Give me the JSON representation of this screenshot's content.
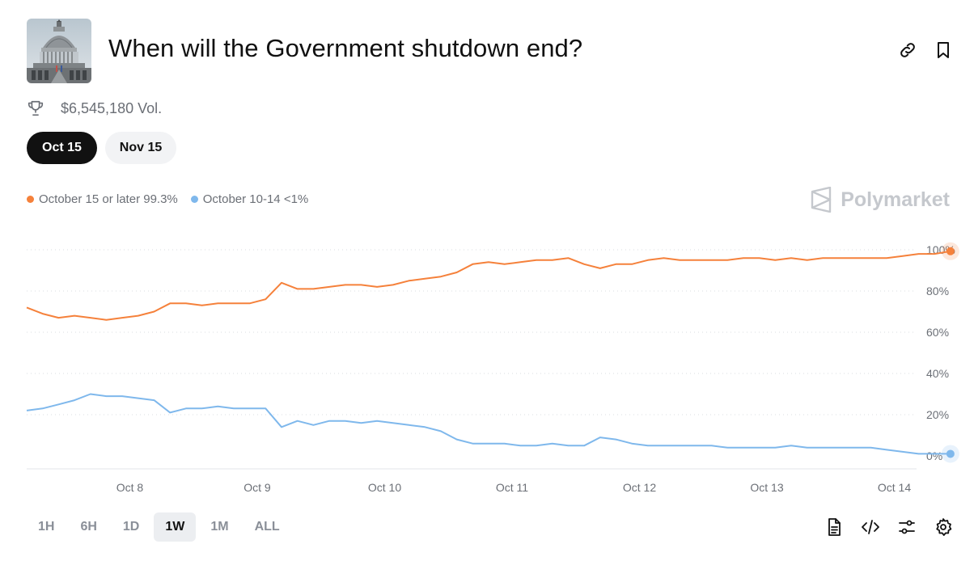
{
  "market": {
    "title": "When will the Government shutdown end?",
    "volume": "$6,545,180 Vol.",
    "thumbnail": "capitol-building-image"
  },
  "date_tabs": [
    {
      "label": "Oct 15",
      "active": true
    },
    {
      "label": "Nov 15",
      "active": false
    }
  ],
  "legend": [
    {
      "label": "October 15 or later 99.3%",
      "color": "#f5813b"
    },
    {
      "label": "October 10-14 <1%",
      "color": "#7fb8ec"
    }
  ],
  "brand": "Polymarket",
  "time_ranges": [
    {
      "label": "1H",
      "active": false
    },
    {
      "label": "6H",
      "active": false
    },
    {
      "label": "1D",
      "active": false
    },
    {
      "label": "1W",
      "active": true
    },
    {
      "label": "1M",
      "active": false
    },
    {
      "label": "ALL",
      "active": false
    }
  ],
  "icons": {
    "header": [
      "link-icon",
      "bookmark-icon"
    ],
    "toolbar": [
      "document-icon",
      "code-icon",
      "sliders-icon",
      "settings-icon"
    ],
    "volume": "trophy-icon"
  },
  "chart_data": {
    "type": "line",
    "ylim": [
      0,
      100
    ],
    "yticks": [
      "0%",
      "20%",
      "40%",
      "60%",
      "80%",
      "100%"
    ],
    "xticks": [
      "Oct 8",
      "Oct 9",
      "Oct 10",
      "Oct 11",
      "Oct 12",
      "Oct 13",
      "Oct 14"
    ],
    "xrange": [
      "2025-10-07",
      "2025-10-14"
    ],
    "grid": true,
    "series": [
      {
        "name": "October 15 or later",
        "color": "#f5813b",
        "x": [
          "2025-10-07 00:00",
          "2025-10-07 03:00",
          "2025-10-07 06:00",
          "2025-10-07 09:00",
          "2025-10-07 12:00",
          "2025-10-07 15:00",
          "2025-10-07 18:00",
          "2025-10-07 21:00",
          "2025-10-08 00:00",
          "2025-10-08 03:00",
          "2025-10-08 06:00",
          "2025-10-08 09:00",
          "2025-10-08 12:00",
          "2025-10-08 15:00",
          "2025-10-08 18:00",
          "2025-10-08 21:00",
          "2025-10-09 00:00",
          "2025-10-09 03:00",
          "2025-10-09 06:00",
          "2025-10-09 09:00",
          "2025-10-09 12:00",
          "2025-10-09 15:00",
          "2025-10-09 18:00",
          "2025-10-09 21:00",
          "2025-10-10 00:00",
          "2025-10-10 03:00",
          "2025-10-10 06:00",
          "2025-10-10 09:00",
          "2025-10-10 12:00",
          "2025-10-10 15:00",
          "2025-10-10 18:00",
          "2025-10-10 21:00",
          "2025-10-11 00:00",
          "2025-10-11 03:00",
          "2025-10-11 06:00",
          "2025-10-11 09:00",
          "2025-10-11 12:00",
          "2025-10-11 15:00",
          "2025-10-11 18:00",
          "2025-10-11 21:00",
          "2025-10-12 00:00",
          "2025-10-12 03:00",
          "2025-10-12 06:00",
          "2025-10-12 09:00",
          "2025-10-12 12:00",
          "2025-10-12 15:00",
          "2025-10-12 18:00",
          "2025-10-12 21:00",
          "2025-10-13 00:00",
          "2025-10-13 03:00",
          "2025-10-13 06:00",
          "2025-10-13 09:00",
          "2025-10-13 12:00",
          "2025-10-13 15:00",
          "2025-10-13 18:00",
          "2025-10-13 21:00",
          "2025-10-14 00:00",
          "2025-10-14 03:00",
          "2025-10-14 06:00"
        ],
        "values": [
          72,
          69,
          67,
          68,
          67,
          66,
          67,
          68,
          70,
          74,
          74,
          73,
          74,
          74,
          74,
          76,
          84,
          81,
          81,
          82,
          83,
          83,
          82,
          83,
          85,
          86,
          87,
          89,
          93,
          94,
          93,
          94,
          95,
          95,
          96,
          93,
          91,
          93,
          93,
          95,
          96,
          95,
          95,
          95,
          95,
          96,
          96,
          95,
          96,
          95,
          96,
          96,
          96,
          96,
          96,
          97,
          98,
          98,
          99.3
        ]
      },
      {
        "name": "October 10-14",
        "color": "#7fb8ec",
        "x": [
          "2025-10-07 00:00",
          "2025-10-07 03:00",
          "2025-10-07 06:00",
          "2025-10-07 09:00",
          "2025-10-07 12:00",
          "2025-10-07 15:00",
          "2025-10-07 18:00",
          "2025-10-07 21:00",
          "2025-10-08 00:00",
          "2025-10-08 03:00",
          "2025-10-08 06:00",
          "2025-10-08 09:00",
          "2025-10-08 12:00",
          "2025-10-08 15:00",
          "2025-10-08 18:00",
          "2025-10-08 21:00",
          "2025-10-09 00:00",
          "2025-10-09 03:00",
          "2025-10-09 06:00",
          "2025-10-09 09:00",
          "2025-10-09 12:00",
          "2025-10-09 15:00",
          "2025-10-09 18:00",
          "2025-10-09 21:00",
          "2025-10-10 00:00",
          "2025-10-10 03:00",
          "2025-10-10 06:00",
          "2025-10-10 09:00",
          "2025-10-10 12:00",
          "2025-10-10 15:00",
          "2025-10-10 18:00",
          "2025-10-10 21:00",
          "2025-10-11 00:00",
          "2025-10-11 03:00",
          "2025-10-11 06:00",
          "2025-10-11 09:00",
          "2025-10-11 12:00",
          "2025-10-11 15:00",
          "2025-10-11 18:00",
          "2025-10-11 21:00",
          "2025-10-12 00:00",
          "2025-10-12 03:00",
          "2025-10-12 06:00",
          "2025-10-12 09:00",
          "2025-10-12 12:00",
          "2025-10-12 15:00",
          "2025-10-12 18:00",
          "2025-10-12 21:00",
          "2025-10-13 00:00",
          "2025-10-13 03:00",
          "2025-10-13 06:00",
          "2025-10-13 09:00",
          "2025-10-13 12:00",
          "2025-10-13 15:00",
          "2025-10-13 18:00",
          "2025-10-13 21:00",
          "2025-10-14 00:00",
          "2025-10-14 03:00",
          "2025-10-14 06:00"
        ],
        "values": [
          22,
          23,
          25,
          27,
          30,
          29,
          29,
          28,
          27,
          21,
          23,
          23,
          24,
          23,
          23,
          23,
          14,
          17,
          15,
          17,
          17,
          16,
          17,
          16,
          15,
          14,
          12,
          8,
          6,
          6,
          6,
          5,
          5,
          6,
          5,
          5,
          9,
          8,
          6,
          5,
          5,
          5,
          5,
          5,
          4,
          4,
          4,
          4,
          5,
          4,
          4,
          4,
          4,
          4,
          3,
          2,
          1,
          1,
          1
        ]
      }
    ]
  }
}
